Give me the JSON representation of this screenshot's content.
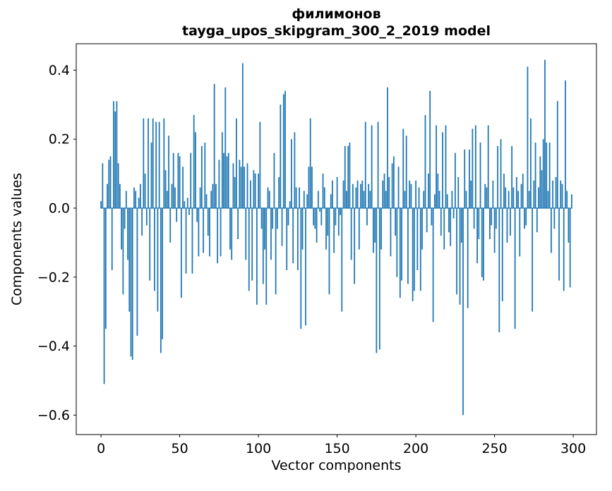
{
  "chart_data": {
    "type": "bar",
    "title": "филимонов",
    "subtitle": "tayga_upos_skipgram_300_2_2019 model",
    "xlabel": "Vector components",
    "ylabel": "Components values",
    "bar_color": "#1f77b4",
    "background": "#ffffff",
    "grid": false,
    "legend": "none",
    "n_components": 300,
    "x_start": 0,
    "x_step": 1,
    "xlim": [
      -15.75,
      314.75
    ],
    "ylim": [
      -0.6565,
      0.4765
    ],
    "xticks": [
      {
        "v": 0,
        "label": "0"
      },
      {
        "v": 50,
        "label": "50"
      },
      {
        "v": 100,
        "label": "100"
      },
      {
        "v": 150,
        "label": "150"
      },
      {
        "v": 200,
        "label": "200"
      },
      {
        "v": 250,
        "label": "250"
      },
      {
        "v": 300,
        "label": "300"
      }
    ],
    "yticks": [
      {
        "v": -0.6,
        "label": "−0.6"
      },
      {
        "v": -0.4,
        "label": "−0.4"
      },
      {
        "v": -0.2,
        "label": "−0.2"
      },
      {
        "v": 0.0,
        "label": "0.0"
      },
      {
        "v": 0.2,
        "label": "0.2"
      },
      {
        "v": 0.4,
        "label": "0.4"
      }
    ],
    "values": [
      0.02,
      0.13,
      -0.51,
      -0.35,
      0.07,
      0.14,
      0.15,
      -0.18,
      0.31,
      0.28,
      0.31,
      0.13,
      0.07,
      -0.12,
      -0.25,
      -0.06,
      0.05,
      -0.15,
      -0.3,
      -0.43,
      -0.44,
      0.06,
      0.05,
      -0.37,
      0.03,
      0.07,
      -0.08,
      0.26,
      0.1,
      -0.05,
      0.26,
      -0.21,
      0.19,
      0.26,
      -0.24,
      0.25,
      -0.3,
      0.25,
      -0.42,
      -0.38,
      0.26,
      0.11,
      0.05,
      0.21,
      -0.1,
      0.07,
      0.16,
      0.06,
      -0.04,
      0.16,
      0.15,
      -0.26,
      0.12,
      0.02,
      -0.19,
      0.03,
      -0.02,
      0.16,
      -0.19,
      0.27,
      0.22,
      -0.04,
      -0.14,
      0.06,
      0.18,
      -0.13,
      0.19,
      0.04,
      -0.08,
      -0.14,
      0.05,
      0.07,
      0.36,
      0.07,
      -0.16,
      0.14,
      -0.14,
      0.22,
      0.16,
      0.35,
      0.15,
      0.16,
      -0.12,
      -0.15,
      0.13,
      0.09,
      0.26,
      -0.09,
      0.14,
      0.12,
      0.42,
      0.12,
      -0.15,
      0.13,
      -0.24,
      0.08,
      -0.21,
      0.11,
      0.1,
      -0.28,
      0.1,
      0.25,
      -0.06,
      -0.22,
      -0.12,
      -0.28,
      0.06,
      0.05,
      -0.15,
      -0.06,
      0.16,
      -0.25,
      -0.06,
      0.09,
      0.3,
      -0.11,
      0.33,
      0.34,
      -0.18,
      -0.05,
      0.02,
      0.2,
      -0.16,
      0.22,
      0.06,
      -0.18,
      0.06,
      -0.35,
      -0.12,
      0.05,
      -0.34,
      0.04,
      0.12,
      0.26,
      0.12,
      -0.05,
      -0.06,
      -0.1,
      0.05,
      -0.01,
      -0.05,
      0.1,
      0.06,
      -0.12,
      -0.08,
      -0.25,
      0.04,
      0.08,
      -0.13,
      -0.05,
      0.09,
      -0.08,
      -0.02,
      -0.3,
      0.08,
      0.18,
      0.05,
      0.18,
      0.19,
      -0.15,
      0.07,
      -0.22,
      0.06,
      0.08,
      -0.12,
      0.07,
      0.08,
      0.05,
      0.25,
      -0.05,
      0.07,
      0.05,
      0.24,
      -0.13,
      -0.1,
      -0.42,
      0.25,
      -0.41,
      -0.12,
      0.08,
      0.1,
      0.05,
      0.35,
      0.09,
      -0.14,
      0.13,
      0.15,
      -0.08,
      -0.2,
      0.12,
      -0.26,
      -0.21,
      0.23,
      0.05,
      0.21,
      -0.22,
      0.08,
      0.07,
      -0.27,
      -0.24,
      0.08,
      -0.18,
      0.06,
      -0.24,
      -0.12,
      0.05,
      0.27,
      -0.07,
      0.1,
      0.34,
      -0.05,
      -0.33,
      0.04,
      0.24,
      0.1,
      0.05,
      -0.08,
      0.22,
      -0.12,
      0.24,
      0.04,
      -0.07,
      -0.11,
      0.05,
      -0.03,
      0.16,
      -0.25,
      0.09,
      -0.28,
      -0.1,
      -0.6,
      0.17,
      0.05,
      -0.29,
      0.17,
      0.08,
      0.23,
      -0.06,
      0.24,
      -0.16,
      -0.09,
      0.19,
      -0.2,
      -0.21,
      0.07,
      0.06,
      0.24,
      -0.09,
      -0.05,
      0.08,
      -0.13,
      -0.06,
      0.18,
      -0.36,
      0.2,
      -0.27,
      0.1,
      0.06,
      -0.1,
      0.05,
      -0.08,
      0.18,
      0.06,
      -0.35,
      0.09,
      0.05,
      -0.14,
      0.07,
      0.1,
      -0.06,
      -0.05,
      0.41,
      0.05,
      0.26,
      -0.3,
      0.08,
      0.19,
      -0.07,
      0.06,
      0.15,
      0.11,
      0.2,
      0.43,
      0.19,
      0.05,
      0.19,
      -0.13,
      0.08,
      -0.06,
      0.09,
      0.31,
      -0.21,
      0.08,
      0.07,
      -0.24,
      0.37,
      0.05,
      -0.1,
      -0.23,
      0.04
    ]
  }
}
